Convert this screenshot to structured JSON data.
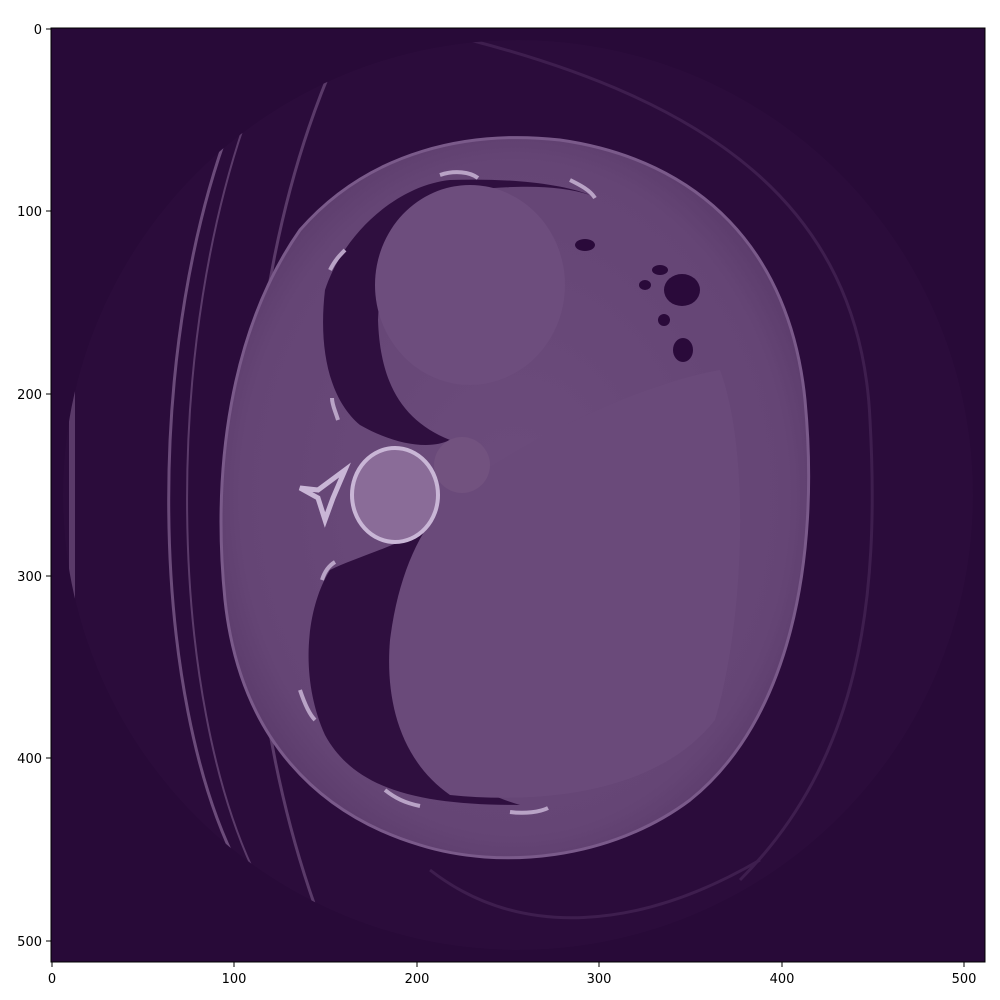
{
  "colors": {
    "background": "#280a38",
    "tissue": "#6a4a7a",
    "lung": "#2f0f3f",
    "bone": "#c9b6d6",
    "axis": "#000000"
  },
  "axes": {
    "x_ticks": [
      "0",
      "100",
      "200",
      "300",
      "400",
      "500"
    ],
    "y_ticks": [
      "0",
      "100",
      "200",
      "300",
      "400",
      "500"
    ],
    "xlim": [
      0,
      512
    ],
    "ylim": [
      512,
      0
    ]
  }
}
